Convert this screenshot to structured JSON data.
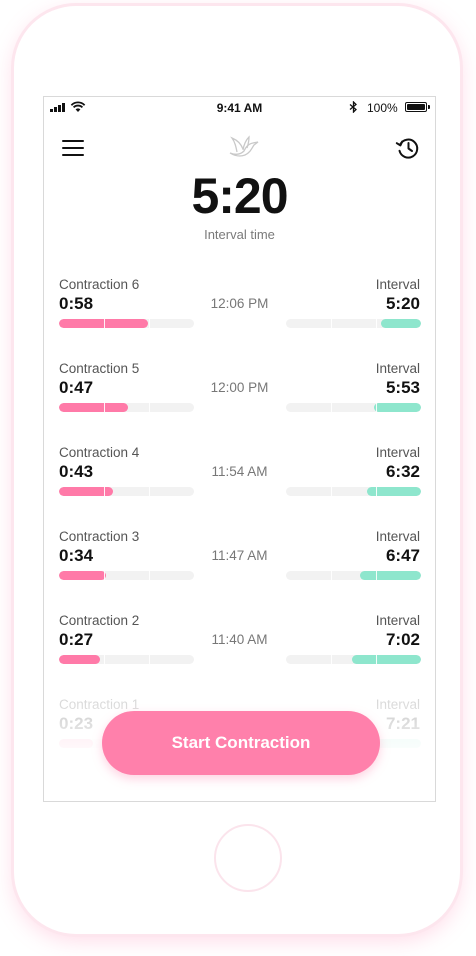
{
  "status_bar": {
    "time": "9:41 AM",
    "battery": "100%",
    "icons": [
      "signal-icon",
      "wifi-icon",
      "bluetooth-icon",
      "battery-icon"
    ]
  },
  "header": {
    "menu_icon": "menu-icon",
    "logo_icon": "bird-icon",
    "history_icon": "history-icon"
  },
  "timer": {
    "value": "5:20",
    "caption": "Interval time"
  },
  "rows": [
    {
      "contraction_label": "Contraction 6",
      "duration": "0:58",
      "clock_time": "12:06 PM",
      "interval_label": "Interval",
      "interval": "5:20",
      "duration_fill": 0.66,
      "interval_fill": 0.3
    },
    {
      "contraction_label": "Contraction 5",
      "duration": "0:47",
      "clock_time": "12:00 PM",
      "interval_label": "Interval",
      "interval": "5:53",
      "duration_fill": 0.51,
      "interval_fill": 0.35
    },
    {
      "contraction_label": "Contraction 4",
      "duration": "0:43",
      "clock_time": "11:54 AM",
      "interval_label": "Interval",
      "interval": "6:32",
      "duration_fill": 0.4,
      "interval_fill": 0.4
    },
    {
      "contraction_label": "Contraction 3",
      "duration": "0:34",
      "clock_time": "11:47 AM",
      "interval_label": "Interval",
      "interval": "6:47",
      "duration_fill": 0.35,
      "interval_fill": 0.45
    },
    {
      "contraction_label": "Contraction 2",
      "duration": "0:27",
      "clock_time": "11:40 AM",
      "interval_label": "Interval",
      "interval": "7:02",
      "duration_fill": 0.3,
      "interval_fill": 0.51
    },
    {
      "contraction_label": "Contraction 1",
      "duration": "0:23",
      "clock_time": "",
      "interval_label": "Interval",
      "interval": "7:21",
      "duration_fill": 0.25,
      "interval_fill": 0.55
    }
  ],
  "start_button": {
    "label": "Start Contraction"
  },
  "colors": {
    "accent_pink": "#ff80ab",
    "duration_bar": "#ff7aa8",
    "interval_bar": "#8ee6cd",
    "track": "#f2f2f2"
  }
}
